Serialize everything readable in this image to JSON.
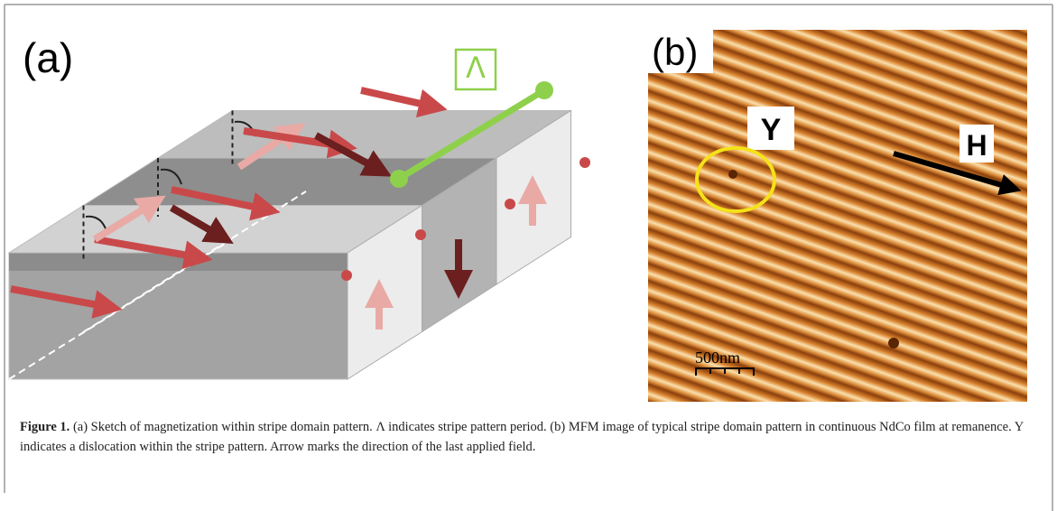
{
  "panel_a": {
    "label": "(a)",
    "period_label": "Λ"
  },
  "panel_b": {
    "label": "(b)",
    "dislocation_label": "Y",
    "field_label": "H",
    "scale_bar": "500nm"
  },
  "caption": {
    "label": "Figure 1.",
    "text": "(a) Sketch of magnetization within stripe domain pattern. Λ indicates stripe pattern period. (b) MFM image of typical stripe domain pattern in continuous NdCo film at remanence. Y indicates a dislocation within the stripe pattern. Arrow marks the direction of the last applied field."
  }
}
